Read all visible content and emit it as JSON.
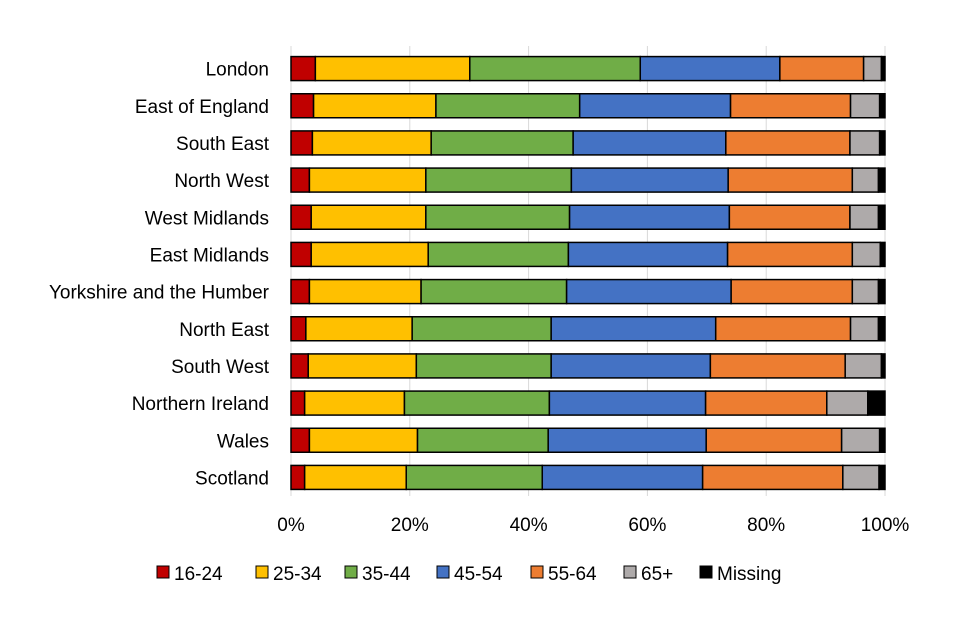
{
  "chart_data": {
    "type": "bar",
    "orientation": "horizontal",
    "stacked": "percent",
    "title": "",
    "xlabel": "",
    "ylabel": "",
    "xlim": [
      0,
      100
    ],
    "x_ticks": [
      "0%",
      "20%",
      "40%",
      "60%",
      "80%",
      "100%"
    ],
    "grid": true,
    "legend_position": "bottom",
    "categories": [
      "London",
      "East of England",
      "South East",
      "North West",
      "West Midlands",
      "East Midlands",
      "Yorkshire and the Humber",
      "North East",
      "South West",
      "Northern Ireland",
      "Wales",
      "Scotland"
    ],
    "series": [
      {
        "name": "16-24",
        "color": "#C00000",
        "values": [
          4.1,
          3.8,
          3.6,
          3.1,
          3.4,
          3.4,
          3.1,
          2.5,
          2.9,
          2.3,
          3.1,
          2.3
        ]
      },
      {
        "name": "25-34",
        "color": "#FFC000",
        "values": [
          26.0,
          20.6,
          20.0,
          19.6,
          19.3,
          19.7,
          18.8,
          17.9,
          18.2,
          16.8,
          18.2,
          17.1
        ]
      },
      {
        "name": "35-44",
        "color": "#70AD47",
        "values": [
          28.7,
          24.2,
          23.9,
          24.5,
          24.2,
          23.6,
          24.5,
          23.4,
          22.7,
          24.4,
          22.0,
          22.9
        ]
      },
      {
        "name": "45-54",
        "color": "#4472C4",
        "values": [
          23.5,
          25.4,
          25.7,
          26.4,
          26.9,
          26.8,
          27.7,
          27.7,
          26.8,
          26.3,
          26.6,
          27.0
        ]
      },
      {
        "name": "55-64",
        "color": "#ED7D31",
        "values": [
          14.1,
          20.2,
          20.9,
          20.9,
          20.3,
          21.0,
          20.4,
          22.7,
          22.7,
          20.4,
          22.8,
          23.6
        ]
      },
      {
        "name": "65+",
        "color": "#AEAAAA",
        "values": [
          3.0,
          4.9,
          5.0,
          4.4,
          4.8,
          4.7,
          4.4,
          4.7,
          6.1,
          6.9,
          6.4,
          6.1
        ]
      },
      {
        "name": "Missing",
        "color": "#000000",
        "values": [
          0.6,
          0.9,
          0.9,
          1.1,
          1.1,
          0.8,
          1.1,
          1.1,
          0.6,
          2.9,
          0.9,
          1.0
        ]
      }
    ]
  }
}
